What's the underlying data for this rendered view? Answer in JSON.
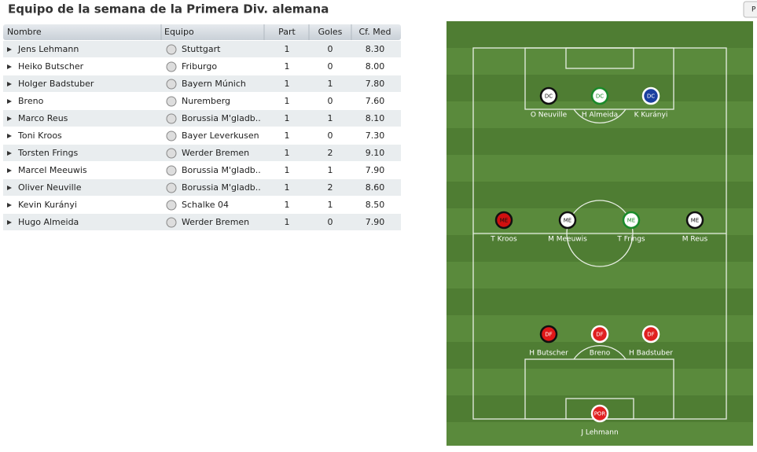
{
  "title": "Equipo de la semana de la Primera Div. alemana",
  "button": "P",
  "table": {
    "columns": [
      "Nombre",
      "Equipo",
      "Part",
      "Goles",
      "Cf. Med"
    ],
    "rows": [
      [
        "Jens Lehmann",
        "Stuttgart",
        "1",
        "0",
        "8.30"
      ],
      [
        "Heiko Butscher",
        "Friburgo",
        "1",
        "0",
        "8.00"
      ],
      [
        "Holger Badstuber",
        "Bayern Múnich",
        "1",
        "1",
        "7.80"
      ],
      [
        "Breno",
        "Nuremberg",
        "1",
        "0",
        "7.60"
      ],
      [
        "Marco Reus",
        "Borussia M'gladb..",
        "1",
        "1",
        "8.10"
      ],
      [
        "Toni Kroos",
        "Bayer Leverkusen",
        "1",
        "0",
        "7.30"
      ],
      [
        "Torsten Frings",
        "Werder Bremen",
        "1",
        "2",
        "9.10"
      ],
      [
        "Marcel Meeuwis",
        "Borussia M'gladb..",
        "1",
        "1",
        "7.90"
      ],
      [
        "Oliver Neuville",
        "Borussia M'gladb..",
        "1",
        "2",
        "8.60"
      ],
      [
        "Kevin Kurányi",
        "Schalke 04",
        "1",
        "1",
        "8.50"
      ],
      [
        "Hugo Almeida",
        "Werder Bremen",
        "1",
        "0",
        "7.90"
      ]
    ]
  },
  "pitch": {
    "players": [
      {
        "pos": "DC",
        "name": "O Neuville",
        "fill": "#ffffff",
        "ring": "#111111",
        "text": "#111111"
      },
      {
        "pos": "DC",
        "name": "H Almeida",
        "fill": "#ffffff",
        "ring": "#1a8a2a",
        "text": "#1a8a2a"
      },
      {
        "pos": "DC",
        "name": "K Kurányi",
        "fill": "#1a3fa0",
        "ring": "#ffffff",
        "text": "#ffffff"
      },
      {
        "pos": "ME",
        "name": "T Kroos",
        "fill": "#d01010",
        "ring": "#111111",
        "text": "#111111"
      },
      {
        "pos": "ME",
        "name": "M Meeuwis",
        "fill": "#ffffff",
        "ring": "#111111",
        "text": "#111111"
      },
      {
        "pos": "ME",
        "name": "T Frings",
        "fill": "#ffffff",
        "ring": "#1a8a2a",
        "text": "#1a8a2a"
      },
      {
        "pos": "ME",
        "name": "M Reus",
        "fill": "#ffffff",
        "ring": "#111111",
        "text": "#111111"
      },
      {
        "pos": "DF",
        "name": "H Butscher",
        "fill": "#e01818",
        "ring": "#111111",
        "text": "#ffffff"
      },
      {
        "pos": "DF",
        "name": "Breno",
        "fill": "#e02020",
        "ring": "#ffffff",
        "text": "#ffffff"
      },
      {
        "pos": "DF",
        "name": "H Badstuber",
        "fill": "#e02020",
        "ring": "#ffffff",
        "text": "#ffffff"
      },
      {
        "pos": "POR",
        "name": "J Lehmann",
        "fill": "#e02020",
        "ring": "#ffffff",
        "text": "#ffffff"
      }
    ]
  }
}
